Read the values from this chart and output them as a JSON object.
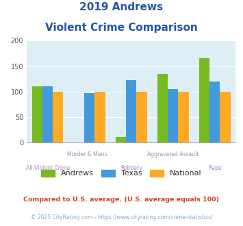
{
  "title_line1": "2019 Andrews",
  "title_line2": "Violent Crime Comparison",
  "categories": [
    "All Violent Crime",
    "Murder & Mans...",
    "Robbery",
    "Aggravated Assault",
    "Rape"
  ],
  "andrews_values": [
    110,
    0,
    10,
    135,
    165
  ],
  "texas_values": [
    110,
    97,
    122,
    105,
    120
  ],
  "national_values": [
    100,
    100,
    100,
    100,
    100
  ],
  "andrews_color": "#77bb22",
  "texas_color": "#4499dd",
  "national_color": "#ffaa22",
  "background_color": "#ddeef5",
  "ylim": [
    0,
    200
  ],
  "yticks": [
    0,
    50,
    100,
    150,
    200
  ],
  "legend_labels": [
    "Andrews",
    "Texas",
    "National"
  ],
  "footer_text1": "Compared to U.S. average. (U.S. average equals 100)",
  "footer_text2": "© 2025 CityRating.com - https://www.cityrating.com/crime-statistics/",
  "title_color": "#2255aa",
  "footer1_color": "#cc4422",
  "footer2_color": "#88aacc",
  "xlabel_color": "#aa88bb",
  "upper_labels": [
    "",
    "Murder & Mans...",
    "",
    "Aggravated Assault",
    ""
  ],
  "lower_labels": [
    "All Violent Crime",
    "",
    "Robbery",
    "",
    "Rape"
  ]
}
